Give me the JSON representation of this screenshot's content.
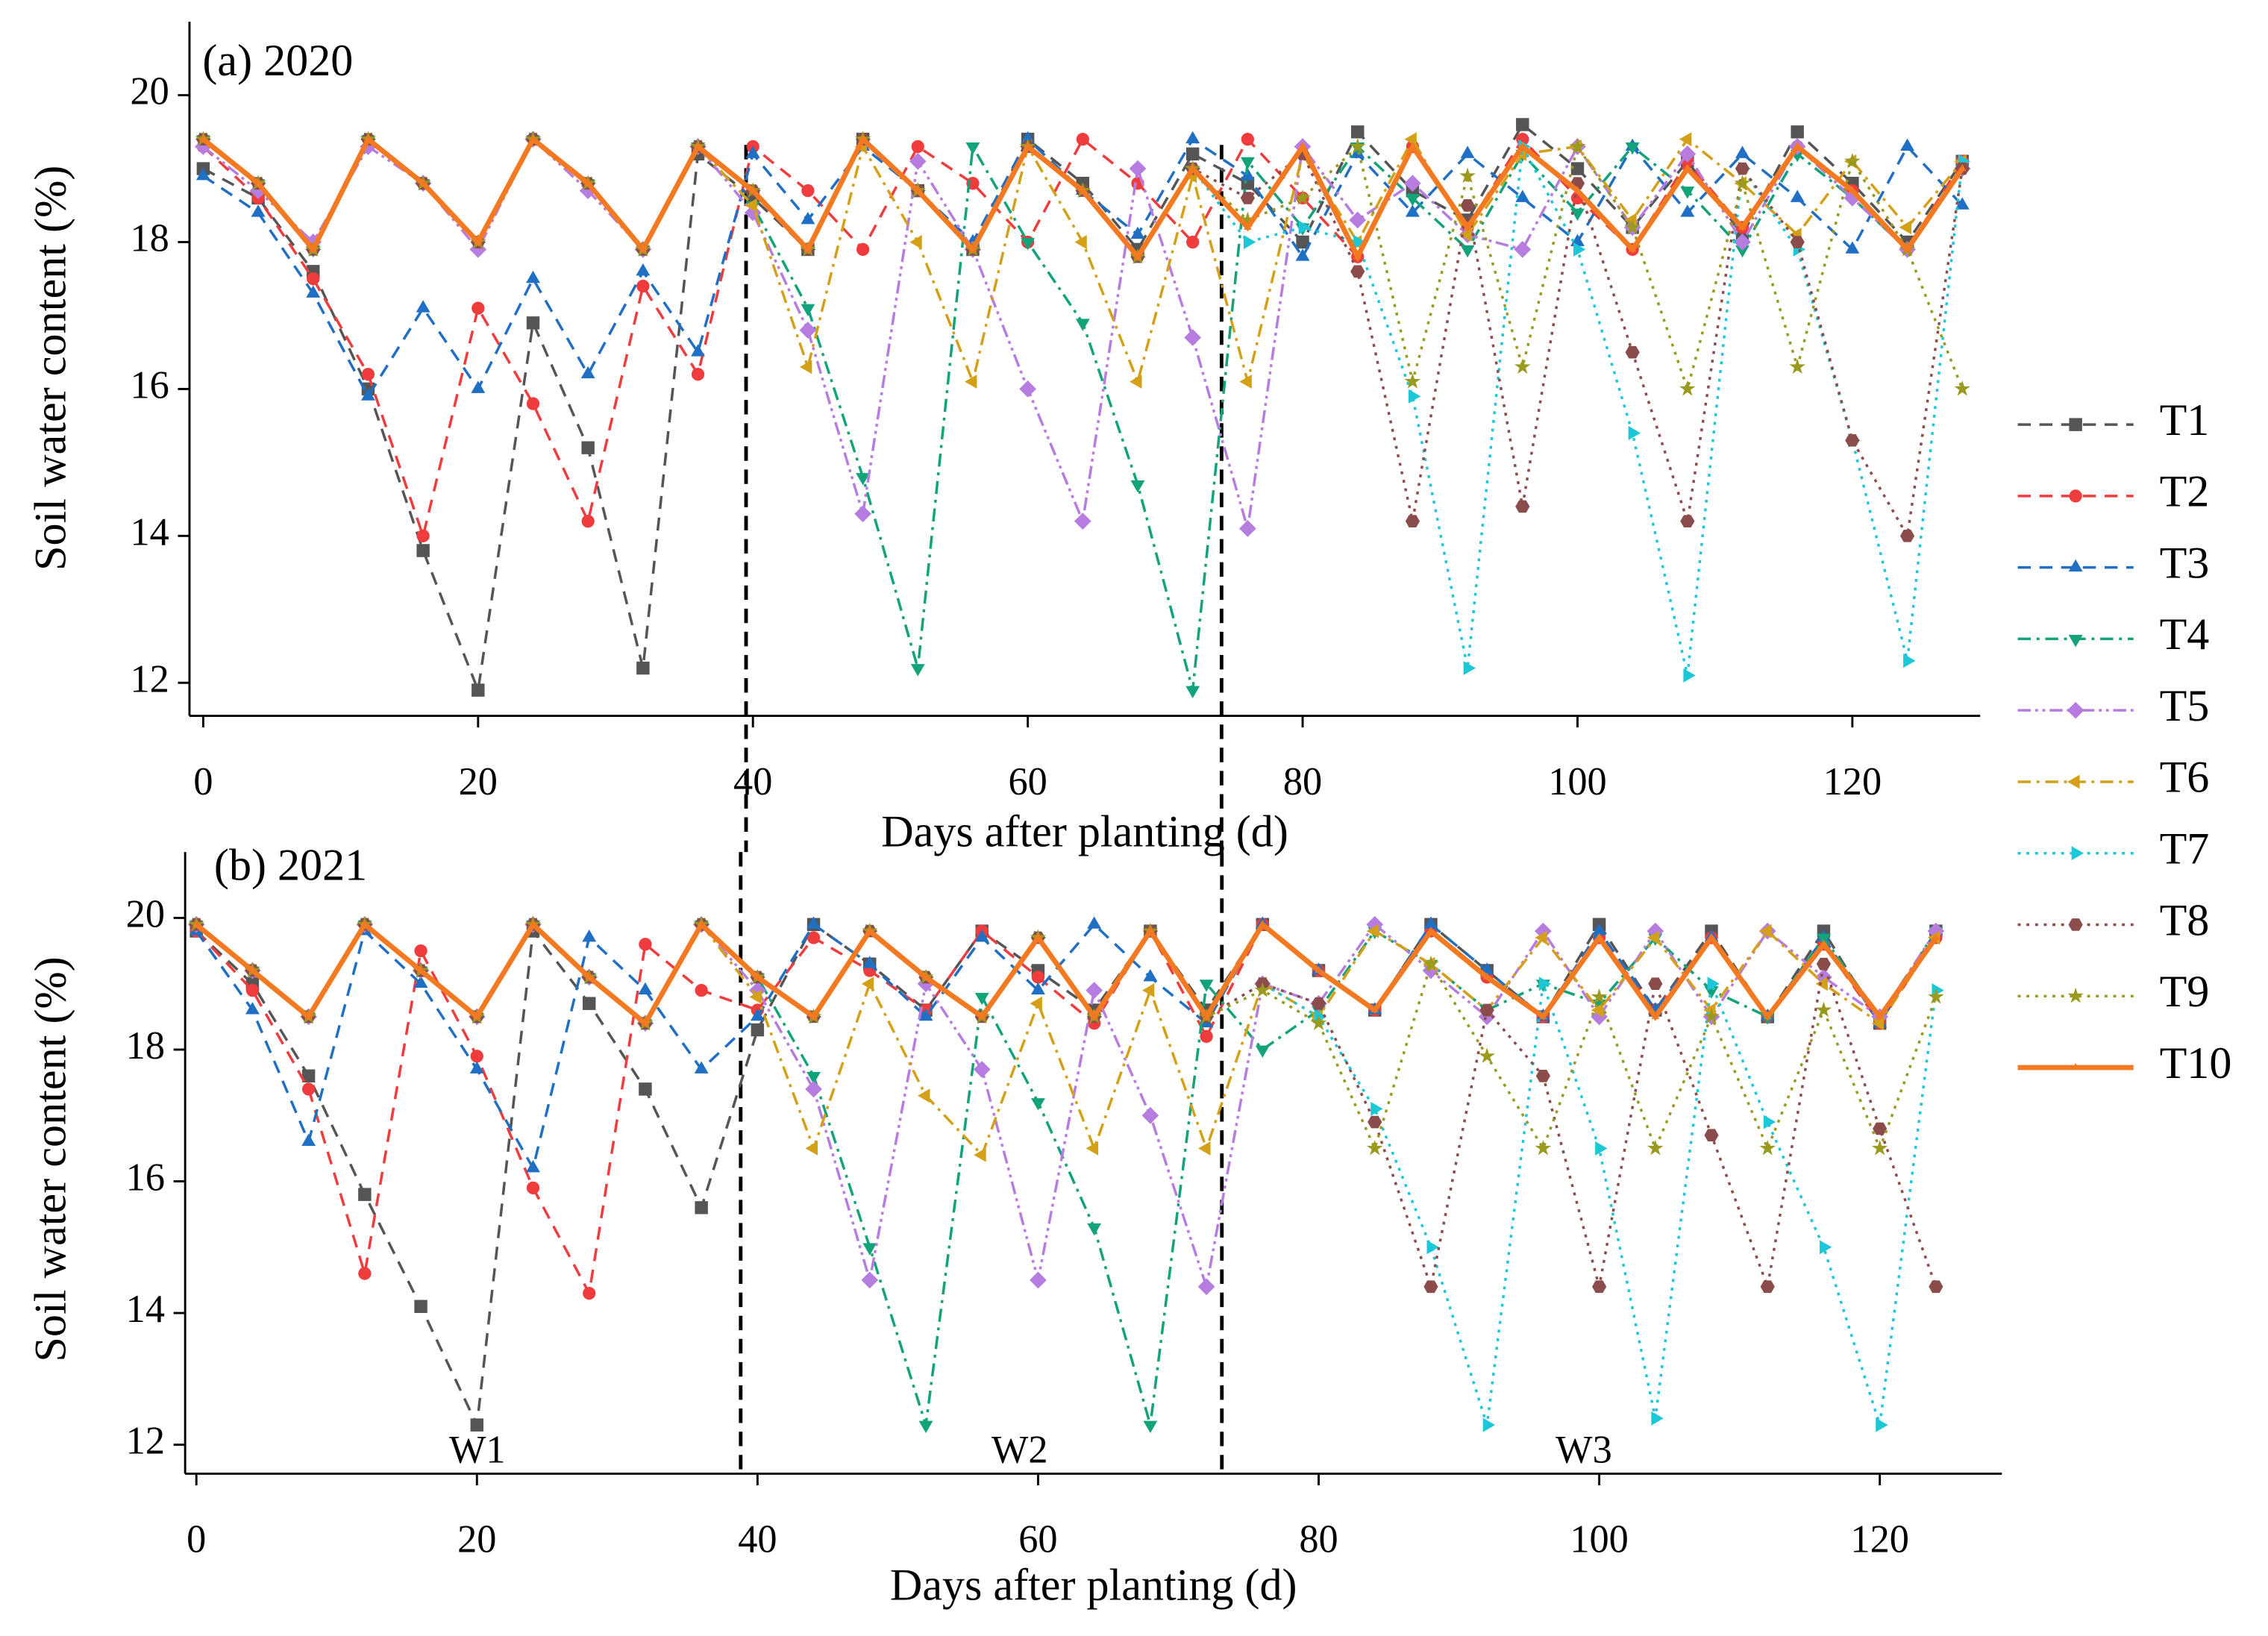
{
  "chart_data": [
    {
      "type": "line",
      "title": "(a) 2020",
      "xlabel": "Days after planting (d)",
      "ylabel": "Soil water content (%)",
      "x": [
        0,
        4,
        8,
        12,
        16,
        20,
        24,
        28,
        32,
        36,
        40,
        44,
        48,
        52,
        56,
        60,
        64,
        68,
        72,
        76,
        80,
        84,
        88,
        92,
        96,
        100,
        104,
        108,
        112,
        116,
        120,
        124,
        128
      ],
      "xlim": [
        -1,
        129.3
      ],
      "ylim": [
        11.55,
        21
      ],
      "xticks": [
        0,
        20,
        40,
        60,
        80,
        100,
        120
      ],
      "yticks": [
        12,
        14,
        16,
        18,
        20
      ],
      "dividers": [
        39.5,
        74.1
      ],
      "legend": "right",
      "series": [
        {
          "name": "T1",
          "color": "#555555",
          "line_style": "dashed",
          "marker": "square",
          "values": [
            19.0,
            18.6,
            17.6,
            16.0,
            13.8,
            11.9,
            16.9,
            15.2,
            12.2,
            19.2,
            18.6,
            17.9,
            19.4,
            18.7,
            17.9,
            19.4,
            18.8,
            17.9,
            19.2,
            18.8,
            18.0,
            19.5,
            18.7,
            18.3,
            19.6,
            19.0,
            18.2,
            19.1,
            18.1,
            19.5,
            18.8,
            18.0,
            19.1
          ]
        },
        {
          "name": "T2",
          "color": "#f03c3c",
          "line_style": "dashed",
          "marker": "circle",
          "values": [
            19.3,
            18.6,
            17.5,
            16.2,
            14.0,
            17.1,
            15.8,
            14.2,
            17.4,
            16.2,
            19.3,
            18.7,
            17.9,
            19.3,
            18.8,
            18.0,
            19.4,
            18.8,
            18.0,
            19.4,
            18.6,
            17.8,
            19.3,
            18.2,
            19.4,
            18.6,
            17.9,
            19.1,
            18.2,
            19.3,
            18.7,
            17.9,
            19.1
          ]
        },
        {
          "name": "T3",
          "color": "#1f6fc4",
          "line_style": "dashed",
          "marker": "triangle-up",
          "values": [
            18.9,
            18.4,
            17.3,
            15.9,
            17.1,
            16.0,
            17.5,
            16.2,
            17.6,
            16.5,
            19.2,
            18.3,
            19.3,
            18.7,
            18.0,
            19.4,
            18.7,
            18.1,
            19.4,
            18.9,
            17.8,
            19.2,
            18.4,
            19.2,
            18.6,
            18.0,
            19.3,
            18.4,
            19.2,
            18.6,
            17.9,
            19.3,
            18.5
          ]
        },
        {
          "name": "T4",
          "color": "#12a37a",
          "line_style": "dashdot",
          "marker": "triangle-down",
          "values": [
            19.4,
            18.8,
            17.9,
            19.4,
            18.8,
            18.0,
            19.4,
            18.8,
            17.9,
            19.3,
            18.5,
            17.1,
            14.8,
            12.2,
            19.3,
            18.0,
            16.9,
            14.7,
            11.9,
            19.1,
            18.2,
            19.3,
            18.6,
            17.9,
            19.2,
            18.4,
            19.3,
            18.7,
            17.9,
            19.2,
            18.6,
            17.9,
            19.0
          ]
        },
        {
          "name": "T5",
          "color": "#b77ce0",
          "line_style": "dashdotdot",
          "marker": "diamond",
          "values": [
            19.3,
            18.7,
            18.0,
            19.3,
            18.8,
            17.9,
            19.4,
            18.7,
            17.9,
            19.3,
            18.4,
            16.8,
            14.3,
            19.1,
            17.9,
            16.0,
            14.2,
            19.0,
            16.7,
            14.1,
            19.3,
            18.3,
            18.8,
            18.1,
            17.9,
            19.3,
            18.2,
            19.2,
            18.0,
            19.3,
            18.6,
            17.9,
            19.0
          ]
        },
        {
          "name": "T6",
          "color": "#d4a017",
          "line_style": "dashdot",
          "marker": "triangle-left",
          "values": [
            19.4,
            18.8,
            17.9,
            19.4,
            18.8,
            18.0,
            19.4,
            18.8,
            17.9,
            19.3,
            18.5,
            16.3,
            19.3,
            18.0,
            16.1,
            19.3,
            18.0,
            16.1,
            18.9,
            16.1,
            19.2,
            18.0,
            19.4,
            18.1,
            19.2,
            19.3,
            18.3,
            19.4,
            18.8,
            18.1,
            19.1,
            18.2,
            19.1
          ]
        },
        {
          "name": "T7",
          "color": "#1cc8d8",
          "line_style": "dotted",
          "marker": "triangle-right",
          "values": [
            19.4,
            18.8,
            17.9,
            19.4,
            18.8,
            18.0,
            19.4,
            18.8,
            17.9,
            19.3,
            18.7,
            17.9,
            19.4,
            18.7,
            17.9,
            19.3,
            18.7,
            17.8,
            19.0,
            18.0,
            18.2,
            18.0,
            15.9,
            12.2,
            19.3,
            17.9,
            15.4,
            12.1,
            19.0,
            17.9,
            15.3,
            12.3,
            19.1
          ]
        },
        {
          "name": "T8",
          "color": "#8b4c4c",
          "line_style": "dotted",
          "marker": "hexagon",
          "values": [
            19.4,
            18.8,
            17.9,
            19.4,
            18.8,
            18.0,
            19.4,
            18.8,
            17.9,
            19.3,
            18.7,
            17.9,
            19.4,
            18.7,
            17.9,
            19.3,
            18.7,
            17.8,
            19.0,
            18.6,
            19.2,
            17.6,
            14.2,
            18.5,
            14.4,
            18.8,
            16.5,
            14.2,
            19.0,
            18.0,
            15.3,
            14.0,
            19.0
          ]
        },
        {
          "name": "T9",
          "color": "#9a9a1e",
          "line_style": "dotted",
          "marker": "star",
          "values": [
            19.4,
            18.8,
            17.9,
            19.4,
            18.8,
            18.0,
            19.4,
            18.8,
            17.9,
            19.3,
            18.7,
            17.9,
            19.4,
            18.7,
            17.9,
            19.3,
            18.7,
            17.8,
            19.0,
            18.3,
            18.6,
            19.3,
            16.1,
            18.9,
            16.3,
            19.3,
            18.2,
            16.0,
            18.8,
            16.3,
            19.1,
            17.9,
            16.0
          ]
        },
        {
          "name": "T10",
          "color": "#f47920",
          "line_style": "solid",
          "marker": "small-triangle",
          "values": [
            19.4,
            18.8,
            17.9,
            19.4,
            18.8,
            18.0,
            19.4,
            18.8,
            17.9,
            19.3,
            18.7,
            17.9,
            19.4,
            18.7,
            17.9,
            19.3,
            18.7,
            17.8,
            19.0,
            18.2,
            19.3,
            17.8,
            19.3,
            18.2,
            19.3,
            18.7,
            17.9,
            19.0,
            18.2,
            19.3,
            18.7,
            17.9,
            19.0
          ]
        }
      ]
    },
    {
      "type": "line",
      "title": "(b) 2021",
      "xlabel": "Days after planting (d)",
      "ylabel": "Soil water content (%)",
      "x": [
        0,
        4,
        8,
        12,
        16,
        20,
        24,
        28,
        32,
        36,
        40,
        44,
        48,
        52,
        56,
        60,
        64,
        68,
        72,
        76,
        80,
        84,
        88,
        92,
        96,
        100,
        104,
        108,
        112,
        116,
        120,
        124
      ],
      "xlim": [
        -0.8,
        128.7
      ],
      "ylim": [
        11.56,
        21
      ],
      "xticks": [
        0,
        20,
        40,
        60,
        80,
        100,
        120
      ],
      "yticks": [
        12,
        14,
        16,
        18,
        20
      ],
      "dividers": [
        38.8,
        73.1
      ],
      "annotations": [
        "W1",
        "W2",
        "W3"
      ],
      "series": [
        {
          "name": "T1",
          "color": "#555555",
          "line_style": "dashed",
          "marker": "square",
          "values": [
            19.8,
            19.0,
            17.6,
            15.8,
            14.1,
            12.3,
            19.8,
            18.7,
            17.4,
            15.6,
            18.3,
            19.9,
            19.3,
            18.6,
            19.8,
            19.2,
            18.6,
            19.8,
            18.6,
            19.9,
            19.2,
            18.6,
            19.9,
            19.2,
            18.5,
            19.9,
            18.6,
            19.8,
            18.5,
            19.8,
            18.4,
            19.8
          ]
        },
        {
          "name": "T2",
          "color": "#f03c3c",
          "line_style": "dashed",
          "marker": "circle",
          "values": [
            19.8,
            18.9,
            17.4,
            14.6,
            19.5,
            17.9,
            15.9,
            14.3,
            19.6,
            18.9,
            18.6,
            19.7,
            19.2,
            18.6,
            19.8,
            19.1,
            18.4,
            19.8,
            18.2,
            19.9,
            19.2,
            18.6,
            19.8,
            19.1,
            18.5,
            19.7,
            18.6,
            19.7,
            18.5,
            19.6,
            18.4,
            19.7
          ]
        },
        {
          "name": "T3",
          "color": "#1f6fc4",
          "line_style": "dashed",
          "marker": "triangle-up",
          "values": [
            19.8,
            18.6,
            16.6,
            19.8,
            19.0,
            17.7,
            16.2,
            19.7,
            18.9,
            17.7,
            18.5,
            19.9,
            19.3,
            18.5,
            19.7,
            18.9,
            19.9,
            19.1,
            18.4,
            19.9,
            19.2,
            18.6,
            19.9,
            19.2,
            18.5,
            19.8,
            18.6,
            19.7,
            18.5,
            19.7,
            18.4,
            19.8
          ]
        },
        {
          "name": "T4",
          "color": "#12a37a",
          "line_style": "dashdot",
          "marker": "triangle-down",
          "values": [
            19.9,
            19.2,
            18.5,
            19.9,
            19.2,
            18.5,
            19.9,
            19.1,
            18.4,
            19.9,
            19.1,
            17.6,
            15.0,
            12.3,
            18.8,
            17.2,
            15.3,
            12.3,
            19.0,
            18.0,
            18.6,
            19.8,
            19.3,
            18.6,
            19.0,
            18.7,
            19.7,
            18.9,
            18.5,
            19.7,
            18.5,
            19.8
          ]
        },
        {
          "name": "T5",
          "color": "#b77ce0",
          "line_style": "dashdotdot",
          "marker": "diamond",
          "values": [
            19.9,
            19.2,
            18.5,
            19.9,
            19.2,
            18.5,
            19.9,
            19.1,
            18.4,
            19.9,
            18.9,
            17.4,
            14.5,
            19.0,
            17.7,
            14.5,
            18.9,
            17.0,
            14.4,
            19.0,
            18.7,
            19.9,
            19.2,
            18.5,
            19.8,
            18.5,
            19.8,
            18.5,
            19.8,
            19.1,
            18.5,
            19.8
          ]
        },
        {
          "name": "T6",
          "color": "#d4a017",
          "line_style": "dashdot",
          "marker": "triangle-left",
          "values": [
            19.9,
            19.2,
            18.5,
            19.9,
            19.2,
            18.5,
            19.9,
            19.1,
            18.4,
            19.9,
            18.8,
            16.5,
            19.0,
            17.3,
            16.4,
            18.7,
            16.5,
            18.9,
            16.5,
            19.0,
            18.5,
            19.8,
            19.3,
            18.6,
            19.7,
            18.6,
            19.7,
            18.6,
            19.8,
            19.0,
            18.4,
            19.7
          ]
        },
        {
          "name": "T7",
          "color": "#1cc8d8",
          "line_style": "dotted",
          "marker": "triangle-right",
          "values": [
            19.9,
            19.2,
            18.5,
            19.9,
            19.2,
            18.5,
            19.9,
            19.1,
            18.4,
            19.9,
            19.1,
            18.5,
            19.8,
            19.1,
            18.5,
            19.7,
            18.5,
            19.8,
            18.5,
            19.0,
            18.5,
            17.1,
            15.0,
            12.3,
            19.0,
            16.5,
            12.4,
            19.0,
            16.9,
            15.0,
            12.3,
            18.9
          ]
        },
        {
          "name": "T8",
          "color": "#8b4c4c",
          "line_style": "dotted",
          "marker": "hexagon",
          "values": [
            19.9,
            19.2,
            18.5,
            19.9,
            19.2,
            18.5,
            19.9,
            19.1,
            18.4,
            19.9,
            19.1,
            18.5,
            19.8,
            19.1,
            18.5,
            19.7,
            18.5,
            19.8,
            18.5,
            19.0,
            18.7,
            16.9,
            14.4,
            18.6,
            17.6,
            14.4,
            19.0,
            16.7,
            14.4,
            19.3,
            16.8,
            14.4
          ]
        },
        {
          "name": "T9",
          "color": "#9a9a1e",
          "line_style": "dotted",
          "marker": "star",
          "values": [
            19.9,
            19.2,
            18.5,
            19.9,
            19.2,
            18.5,
            19.9,
            19.1,
            18.4,
            19.9,
            19.1,
            18.5,
            19.8,
            19.1,
            18.5,
            19.7,
            18.5,
            19.8,
            18.5,
            18.9,
            18.4,
            16.5,
            19.3,
            17.9,
            16.5,
            18.8,
            16.5,
            18.5,
            16.5,
            18.6,
            16.5,
            18.8
          ]
        },
        {
          "name": "T10",
          "color": "#f47920",
          "line_style": "solid",
          "marker": "small-triangle",
          "values": [
            19.9,
            19.2,
            18.5,
            19.9,
            19.2,
            18.5,
            19.9,
            19.1,
            18.4,
            19.9,
            19.1,
            18.5,
            19.8,
            19.1,
            18.5,
            19.7,
            18.5,
            19.8,
            18.5,
            19.9,
            19.2,
            18.6,
            19.8,
            19.1,
            18.5,
            19.7,
            18.5,
            19.7,
            18.5,
            19.6,
            18.5,
            19.7
          ]
        }
      ]
    }
  ]
}
